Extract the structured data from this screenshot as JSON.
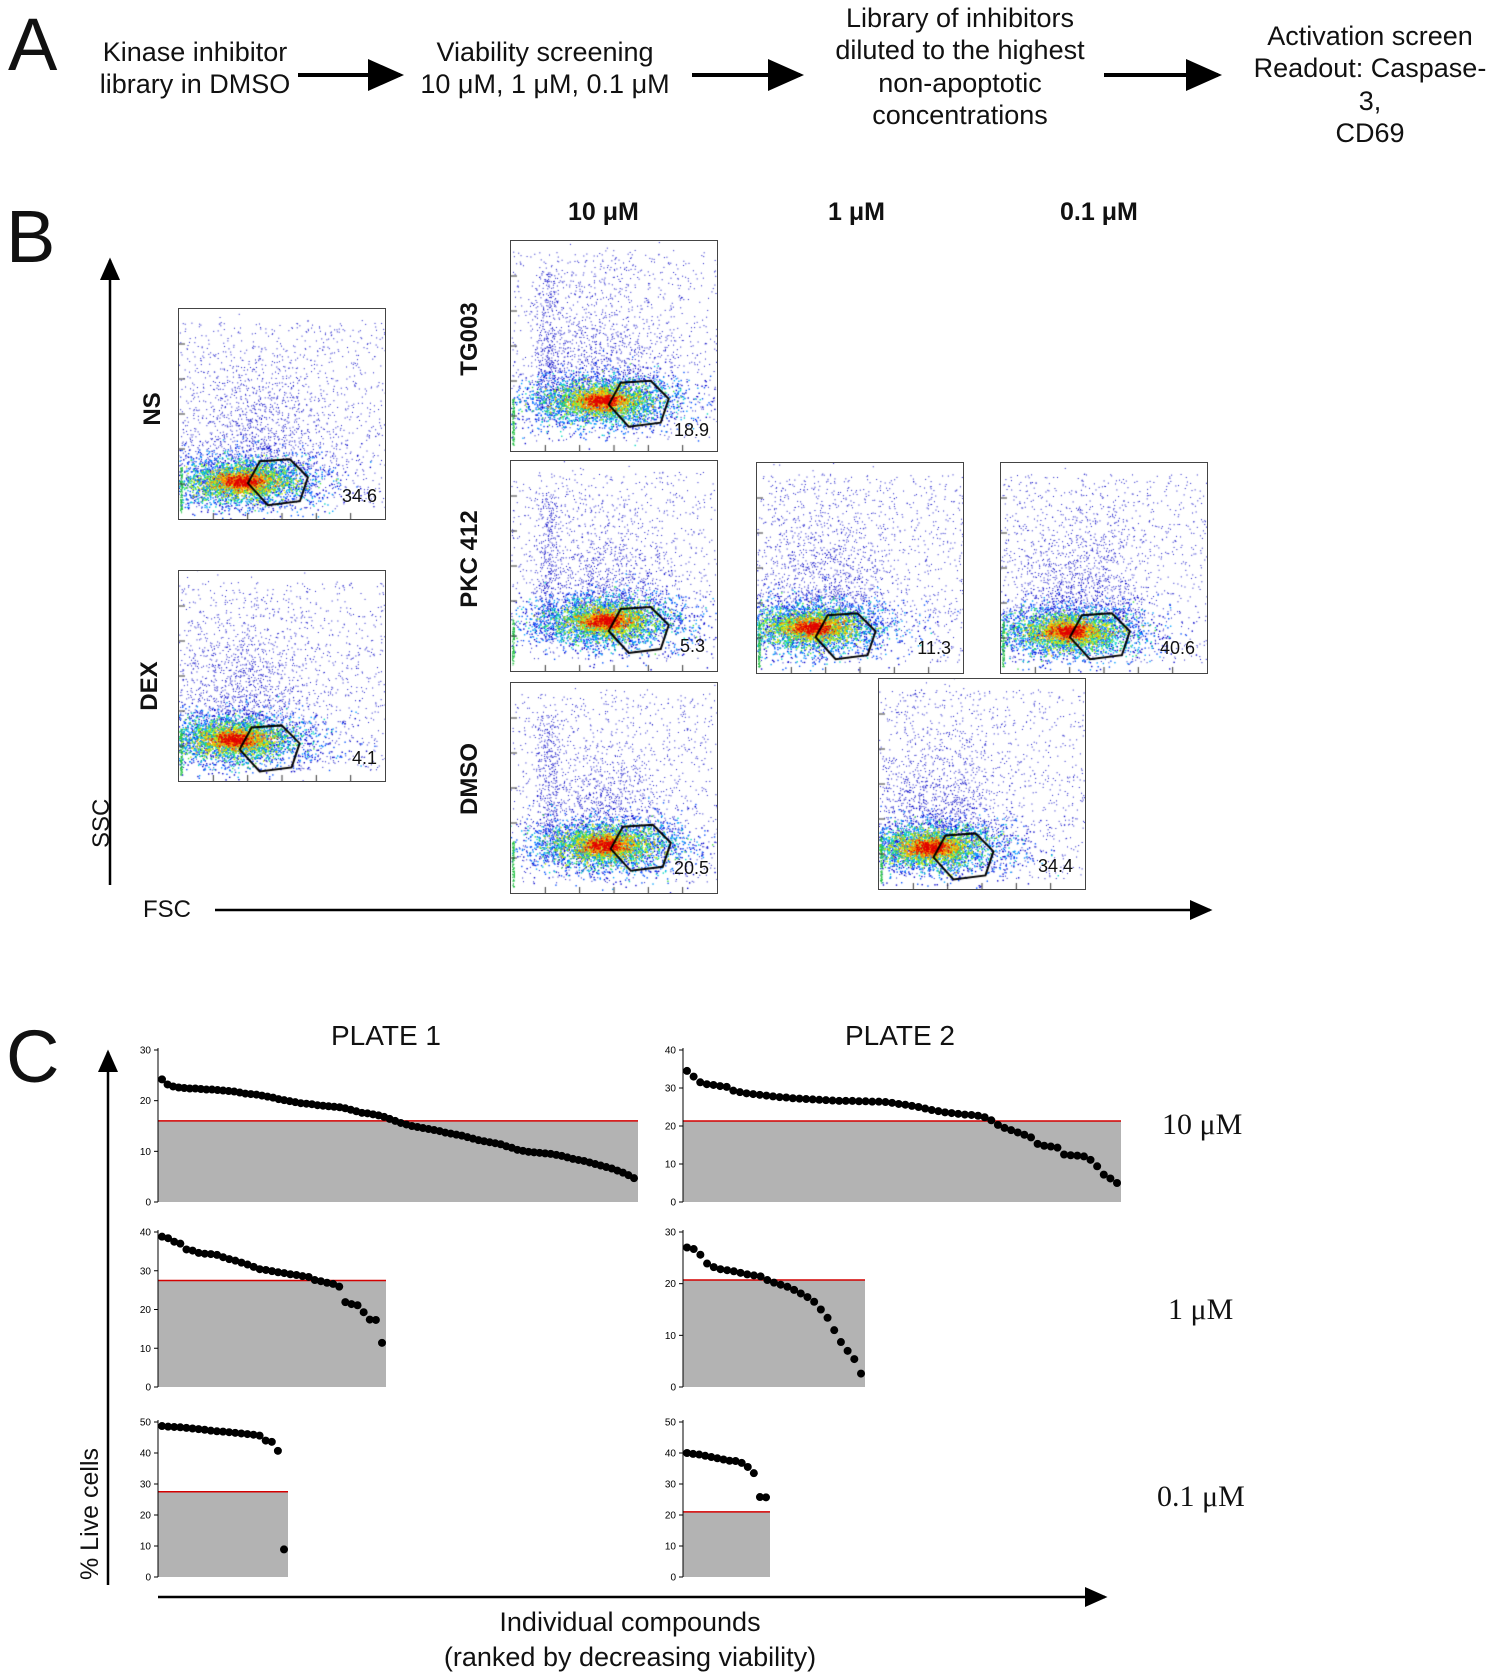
{
  "panels": {
    "a": {
      "label": "A"
    },
    "b": {
      "label": "B"
    },
    "c": {
      "label": "C"
    }
  },
  "flow": {
    "step1": "Kinase inhibitor library in DMSO",
    "step2": "Viability screening 10 μM, 1 μM, 0.1 μM",
    "step3": "Library of inhibitors diluted to the highest non-apoptotic concentrations",
    "step4": "Activation screen Readout: Caspase-3, CD69"
  },
  "flow_lines": {
    "step1": [
      "Kinase inhibitor",
      "library in DMSO"
    ],
    "step2": [
      "Viability screening",
      "10 μM, 1 μM, 0.1 μM"
    ],
    "step3": [
      "Library of inhibitors",
      "diluted to the highest",
      "non-apoptotic",
      "concentrations"
    ],
    "step4": [
      "Activation screen",
      "Readout: Caspase-3,",
      "CD69"
    ]
  },
  "flow_b": {
    "columns": [
      "10 μM",
      "1 μM",
      "0.1 μM"
    ],
    "rows": [
      "NS",
      "DEX",
      "TG003",
      "PKC 412",
      "DMSO"
    ],
    "x_axis": "FSC",
    "y_axis": "SSC",
    "gates": [
      {
        "id": "ns",
        "value": "34.6"
      },
      {
        "id": "dex",
        "value": "4.1"
      },
      {
        "id": "tg003_10",
        "value": "18.9"
      },
      {
        "id": "pkc_10",
        "value": "5.3"
      },
      {
        "id": "pkc_1",
        "value": "11.3"
      },
      {
        "id": "pkc_01",
        "value": "40.6"
      },
      {
        "id": "dmso_10",
        "value": "20.5"
      },
      {
        "id": "dmso_01",
        "value": "34.4"
      }
    ]
  },
  "panel_c": {
    "plate1": "PLATE 1",
    "plate2": "PLATE 2",
    "conc": [
      "10 μM",
      "1 μM",
      "0.1 μM"
    ],
    "y_axis": "% Live cells",
    "x_axis_line1": "Individual compounds",
    "x_axis_line2": "(ranked by decreasing viability)"
  },
  "chart_data": [
    {
      "type": "scatter",
      "plate": "PLATE 1",
      "concentration": "10 μM",
      "ylim": [
        0,
        30
      ],
      "yticks": [
        0,
        10,
        20,
        30
      ],
      "threshold": 16,
      "values": [
        24.2,
        23.2,
        22.8,
        22.6,
        22.5,
        22.4,
        22.4,
        22.3,
        22.2,
        22.2,
        22.1,
        22.0,
        21.9,
        21.8,
        21.6,
        21.4,
        21.3,
        21.2,
        21.0,
        20.8,
        20.6,
        20.3,
        20.1,
        19.9,
        19.7,
        19.5,
        19.4,
        19.3,
        19.1,
        19.0,
        18.9,
        18.8,
        18.7,
        18.5,
        18.2,
        17.9,
        17.6,
        17.5,
        17.3,
        17.1,
        16.8,
        16.4,
        16.0,
        15.6,
        15.3,
        15.0,
        14.8,
        14.6,
        14.4,
        14.2,
        14.0,
        13.7,
        13.5,
        13.3,
        13.1,
        12.8,
        12.5,
        12.2,
        12.0,
        11.8,
        11.6,
        11.4,
        11.0,
        10.7,
        10.3,
        10.1,
        9.9,
        9.8,
        9.7,
        9.6,
        9.5,
        9.3,
        9.1,
        8.8,
        8.5,
        8.3,
        8.1,
        7.8,
        7.5,
        7.2,
        6.9,
        6.6,
        6.2,
        5.8,
        5.3,
        4.7
      ]
    },
    {
      "type": "scatter",
      "plate": "PLATE 2",
      "concentration": "10 μM",
      "ylim": [
        0,
        40
      ],
      "yticks": [
        0,
        10,
        20,
        30,
        40
      ],
      "threshold": 21.3,
      "values": [
        34.5,
        33.0,
        31.5,
        31.0,
        30.8,
        30.5,
        30.3,
        29.3,
        28.9,
        28.6,
        28.4,
        28.2,
        28.0,
        27.8,
        27.6,
        27.5,
        27.3,
        27.2,
        27.1,
        27.0,
        26.9,
        26.8,
        26.7,
        26.6,
        26.6,
        26.6,
        26.5,
        26.5,
        26.4,
        26.4,
        26.3,
        26.1,
        25.8,
        25.6,
        25.3,
        25.0,
        24.6,
        24.2,
        23.9,
        23.6,
        23.4,
        23.2,
        23.0,
        22.9,
        22.7,
        22.3,
        21.5,
        20.3,
        19.5,
        18.9,
        18.3,
        17.7,
        17.0,
        15.3,
        14.8,
        14.6,
        14.3,
        12.5,
        12.3,
        12.2,
        12.0,
        11.1,
        9.4,
        7.2,
        6.2,
        5.0
      ]
    },
    {
      "type": "scatter",
      "plate": "PLATE 1",
      "concentration": "1 μM",
      "ylim": [
        0,
        40
      ],
      "yticks": [
        0,
        10,
        20,
        30,
        40
      ],
      "threshold": 27.5,
      "values": [
        38.8,
        38.4,
        37.5,
        37.0,
        35.5,
        35.2,
        34.6,
        34.4,
        34.3,
        34.1,
        33.5,
        33.0,
        32.6,
        32.1,
        31.6,
        31.0,
        30.4,
        30.2,
        29.9,
        29.6,
        29.4,
        29.1,
        28.9,
        28.6,
        28.4,
        27.6,
        27.3,
        26.9,
        26.6,
        25.9,
        21.9,
        21.4,
        21.1,
        19.3,
        17.4,
        17.3,
        11.4
      ]
    },
    {
      "type": "scatter",
      "plate": "PLATE 2",
      "concentration": "1 μM",
      "ylim": [
        0,
        30
      ],
      "yticks": [
        0,
        10,
        20,
        30
      ],
      "threshold": 20.7,
      "values": [
        27.0,
        26.7,
        25.6,
        23.9,
        23.2,
        22.8,
        22.6,
        22.4,
        22.1,
        21.8,
        21.6,
        21.4,
        20.7,
        20.2,
        19.8,
        19.4,
        18.8,
        18.1,
        17.4,
        16.5,
        15.0,
        13.4,
        11.0,
        8.7,
        7.0,
        5.4,
        2.6
      ]
    },
    {
      "type": "scatter",
      "plate": "PLATE 1",
      "concentration": "0.1 μM",
      "ylim": [
        0,
        50
      ],
      "yticks": [
        0,
        10,
        20,
        30,
        40,
        50
      ],
      "threshold": 27.5,
      "values": [
        48.7,
        48.5,
        48.4,
        48.3,
        48.1,
        47.9,
        47.7,
        47.5,
        47.2,
        47.0,
        46.9,
        46.7,
        46.5,
        46.3,
        46.1,
        45.9,
        45.6,
        44.0,
        43.6,
        40.7,
        8.9
      ]
    },
    {
      "type": "scatter",
      "plate": "PLATE 2",
      "concentration": "0.1 μM",
      "ylim": [
        0,
        50
      ],
      "yticks": [
        0,
        10,
        20,
        30,
        40,
        50
      ],
      "threshold": 21,
      "values": [
        40.0,
        39.7,
        39.5,
        39.1,
        38.7,
        38.3,
        37.9,
        37.5,
        37.4,
        36.8,
        35.5,
        33.5,
        25.8,
        25.7
      ]
    }
  ]
}
